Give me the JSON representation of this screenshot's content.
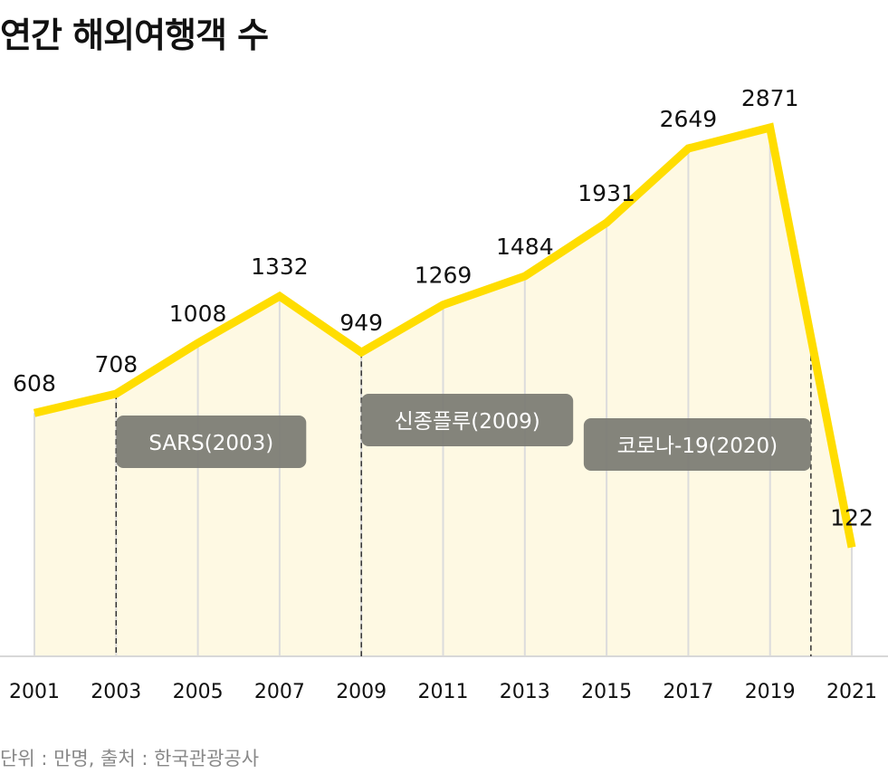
{
  "chart_data": {
    "type": "line",
    "title": "연간 해외여행객 수",
    "x": [
      2001,
      2003,
      2005,
      2007,
      2009,
      2011,
      2013,
      2015,
      2017,
      2019,
      2021
    ],
    "values": [
      608,
      708,
      1008,
      1332,
      949,
      1269,
      1484,
      1931,
      2649,
      2871,
      122
    ],
    "tick_labels": [
      "2001",
      "2003",
      "2005",
      "2007",
      "2009",
      "2011",
      "2013",
      "2015",
      "2017",
      "2019",
      "2021"
    ],
    "data_labels": [
      "608",
      "708",
      "1008",
      "1332",
      "949",
      "1269",
      "1484",
      "1931",
      "2649",
      "2871",
      "122"
    ],
    "annotations": [
      {
        "x": 2003,
        "label": "SARS(2003)"
      },
      {
        "x": 2009,
        "label": "신종플루(2009)"
      },
      {
        "x": 2020,
        "label": "코로나-19(2020)"
      }
    ],
    "grid": "vertical",
    "line_color": "#FFDD00",
    "fill_color": "#FEF9E3",
    "annotation_color": "#7A7A72"
  },
  "footer": "단위 : 만명,  출처 : 한국관광공사"
}
